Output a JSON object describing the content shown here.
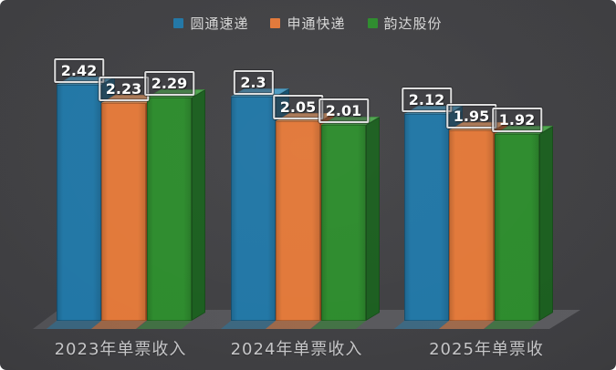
{
  "chart_data": {
    "type": "bar",
    "variant": "3d-clustered-column",
    "title": "",
    "categories": [
      "2023年单票收入",
      "2024年单票收入",
      "2025年单票收"
    ],
    "series": [
      {
        "name": "圆通速递",
        "values": [
          2.42,
          2.3,
          2.12
        ],
        "color": "#2277a6",
        "color_top": "#4d9cc2",
        "color_side": "#15516f"
      },
      {
        "name": "申通快递",
        "values": [
          2.23,
          2.05,
          1.95
        ],
        "color": "#e2793a",
        "color_top": "#efa066",
        "color_side": "#aa4e1d"
      },
      {
        "name": "韵达股份",
        "values": [
          2.29,
          2.01,
          1.92
        ],
        "color": "#2e8c2e",
        "color_top": "#4fa64f",
        "color_side": "#1c5f20"
      }
    ],
    "value_labels_visible": true,
    "legend_position": "top",
    "y_axis_visible": false,
    "grid": false,
    "ylim": [
      0,
      2.6
    ],
    "colors": {
      "background": "#3e3e41",
      "floor": "#57575b",
      "axis_label": "#c6c6c8",
      "value_text": "#ffffff",
      "value_box_border": "#dedede",
      "legend_text": "#d6d6d6"
    }
  }
}
